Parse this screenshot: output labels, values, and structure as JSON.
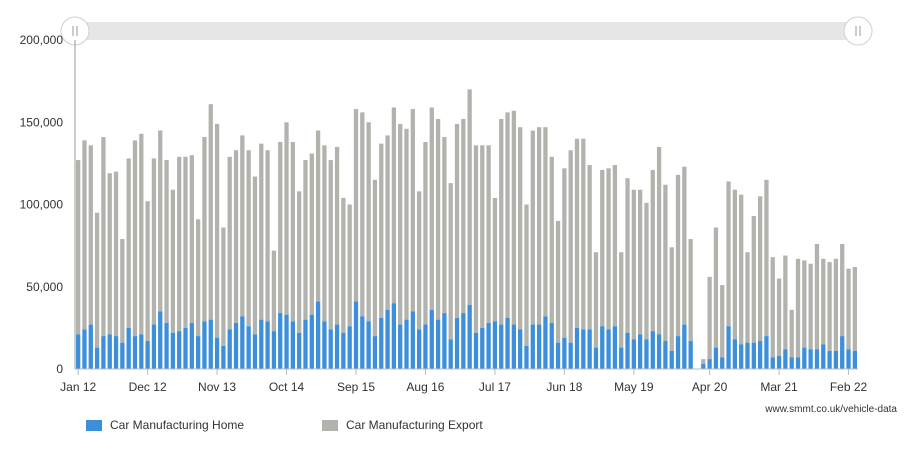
{
  "source_text": "www.smmt.co.uk/vehicle-data",
  "colors": {
    "home": "#3d8fd9",
    "export": "#b3b3ae",
    "scrollbar": "#e6e6e6",
    "axis": "#999999"
  },
  "chart_data": {
    "type": "bar",
    "stacked": true,
    "ylim": [
      0,
      200000
    ],
    "yticks": [
      "0",
      "50,000",
      "100,000",
      "150,000",
      "200,000"
    ],
    "ytick_values": [
      0,
      50000,
      100000,
      150000,
      200000
    ],
    "xtick_labels": [
      "Jan 12",
      "Dec 12",
      "Nov 13",
      "Oct 14",
      "Sep 15",
      "Aug 16",
      "Jul 17",
      "Jun 18",
      "May 19",
      "Apr 20",
      "Mar 21",
      "Feb 22"
    ],
    "legend_position": "bottom-left",
    "series": [
      {
        "name": "Car Manufacturing Home",
        "color": "#3d8fd9",
        "values": [
          21000,
          24000,
          27000,
          13000,
          20000,
          21000,
          20000,
          16000,
          25000,
          20000,
          21000,
          17000,
          27000,
          35000,
          28000,
          22000,
          23000,
          25000,
          28000,
          20000,
          29000,
          30000,
          19000,
          14000,
          24000,
          28000,
          32000,
          26000,
          21000,
          30000,
          29000,
          23000,
          34000,
          33000,
          29000,
          22000,
          30000,
          33000,
          41000,
          29000,
          24000,
          27000,
          22000,
          26000,
          41000,
          32000,
          29000,
          20000,
          31000,
          36000,
          40000,
          27000,
          30000,
          35000,
          24000,
          27000,
          36000,
          30000,
          34000,
          18000,
          31000,
          34000,
          39000,
          22000,
          25000,
          28000,
          29000,
          27000,
          31000,
          27000,
          24000,
          14000,
          27000,
          27000,
          32000,
          28000,
          16000,
          19000,
          16000,
          25000,
          24000,
          24000,
          13000,
          26000,
          24000,
          26000,
          13000,
          22000,
          18000,
          21000,
          18000,
          23000,
          21000,
          17000,
          11000,
          20000,
          27000,
          17000,
          3000,
          6000,
          13000,
          7000,
          26000,
          18000,
          15000,
          16000,
          16000,
          17000,
          20000,
          7000,
          8000,
          12000,
          7000,
          7000,
          13000,
          12000,
          12000,
          15000,
          11000,
          11000,
          20000,
          12000,
          11000
        ]
      },
      {
        "name": "Car Manufacturing Export",
        "color": "#b3b3ae",
        "values": [
          106000,
          115000,
          109000,
          82000,
          121000,
          98000,
          100000,
          63000,
          103000,
          119000,
          122000,
          85000,
          101000,
          110000,
          99000,
          87000,
          106000,
          104000,
          102000,
          71000,
          112000,
          131000,
          130000,
          72000,
          105000,
          105000,
          110000,
          107000,
          96000,
          107000,
          104000,
          49000,
          104000,
          117000,
          109000,
          86000,
          97000,
          98000,
          104000,
          107000,
          103000,
          108000,
          82000,
          74000,
          117000,
          124000,
          121000,
          95000,
          106000,
          106000,
          119000,
          122000,
          116000,
          123000,
          84000,
          111000,
          123000,
          122000,
          107000,
          95000,
          118000,
          118000,
          131000,
          114000,
          111000,
          108000,
          75000,
          125000,
          125000,
          130000,
          123000,
          86000,
          118000,
          120000,
          115000,
          101000,
          74000,
          103000,
          117000,
          115000,
          116000,
          100000,
          58000,
          95000,
          98000,
          98000,
          58000,
          94000,
          91000,
          88000,
          83000,
          98000,
          114000,
          95000,
          63000,
          98000,
          96000,
          62000,
          3000,
          50000,
          73000,
          44000,
          88000,
          91000,
          91000,
          55000,
          77000,
          88000,
          95000,
          61000,
          47000,
          57000,
          29000,
          60000,
          53000,
          52000,
          64000,
          52000,
          54000,
          56000,
          56000,
          49000,
          51000
        ]
      }
    ],
    "gaps_after_index": [
      97
    ]
  }
}
